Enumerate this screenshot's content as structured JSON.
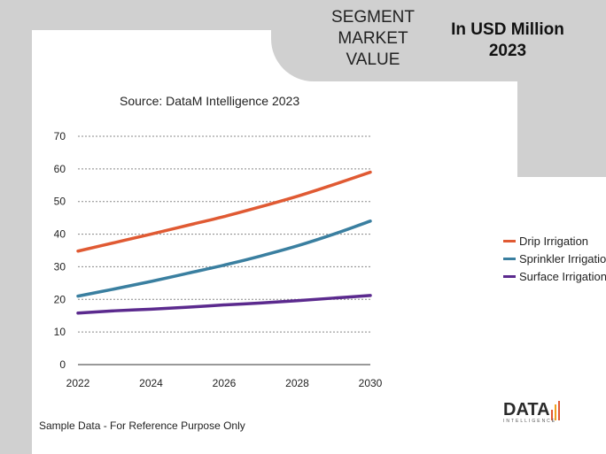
{
  "header": {
    "segment_title": "SEGMENT\nMARKET\nVALUE",
    "usd_title": "In USD Million\n2023"
  },
  "source": "Source: DataM Intelligence  2023",
  "footnote": "Sample Data - For Reference Purpose Only",
  "logo": {
    "text": "DATA",
    "sub": "INTELLIGENCE"
  },
  "colors": {
    "drip": "#e05a33",
    "sprinkler": "#3a7fa0",
    "surface": "#5b2a8e",
    "grid": "#888888"
  },
  "chart_data": {
    "type": "line",
    "title": "",
    "xlabel": "",
    "ylabel": "",
    "x": [
      2022,
      2023,
      2024,
      2025,
      2026,
      2027,
      2028,
      2029,
      2030
    ],
    "x_ticks": [
      "2022",
      "2024",
      "2026",
      "2028",
      "2030"
    ],
    "y_ticks": [
      "0",
      "10",
      "20",
      "30",
      "40",
      "50",
      "60",
      "70"
    ],
    "ylim": [
      0,
      70
    ],
    "xlim": [
      2022,
      2030
    ],
    "grid": true,
    "legend_position": "right",
    "series": [
      {
        "name": "Drip Irrigation",
        "color_key": "drip",
        "values": [
          34.8,
          37.4,
          40.0,
          42.7,
          45.4,
          48.4,
          51.6,
          55.2,
          59.0
        ]
      },
      {
        "name": "Sprinkler Irrigation",
        "color_key": "sprinkler",
        "values": [
          21.0,
          23.2,
          25.5,
          28.0,
          30.5,
          33.3,
          36.4,
          40.0,
          44.0
        ]
      },
      {
        "name": "Surface Irrigation",
        "color_key": "surface",
        "values": [
          15.8,
          16.5,
          17.0,
          17.6,
          18.3,
          18.9,
          19.6,
          20.4,
          21.2
        ]
      }
    ]
  }
}
